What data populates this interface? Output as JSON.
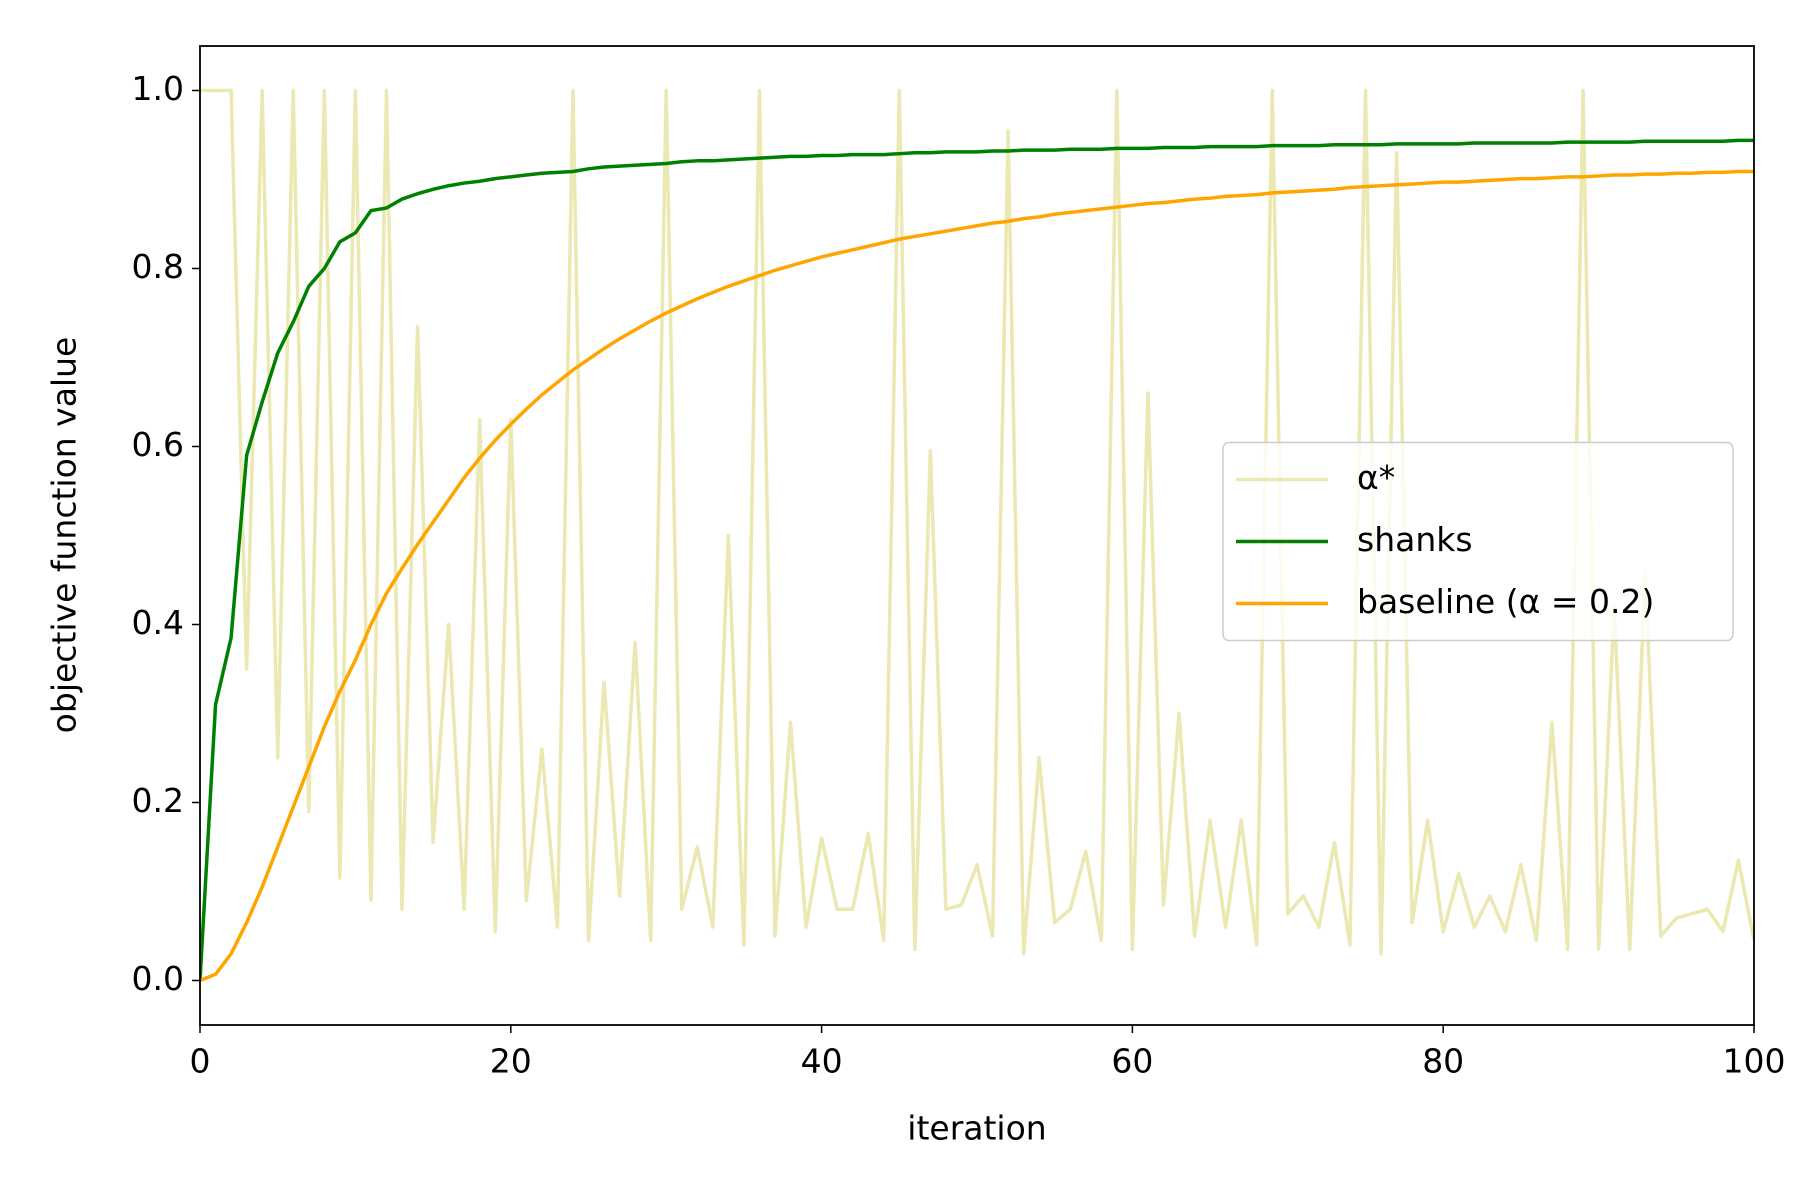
{
  "chart_data": {
    "type": "line",
    "x_label": "iteration",
    "y_label": "objective function value",
    "x": [
      0,
      1,
      2,
      3,
      4,
      5,
      6,
      7,
      8,
      9,
      10,
      11,
      12,
      13,
      14,
      15,
      16,
      17,
      18,
      19,
      20,
      21,
      22,
      23,
      24,
      25,
      26,
      27,
      28,
      29,
      30,
      31,
      32,
      33,
      34,
      35,
      36,
      37,
      38,
      39,
      40,
      41,
      42,
      43,
      44,
      45,
      46,
      47,
      48,
      49,
      50,
      51,
      52,
      53,
      54,
      55,
      56,
      57,
      58,
      59,
      60,
      61,
      62,
      63,
      64,
      65,
      66,
      67,
      68,
      69,
      70,
      71,
      72,
      73,
      74,
      75,
      76,
      77,
      78,
      79,
      80,
      81,
      82,
      83,
      84,
      85,
      86,
      87,
      88,
      89,
      90,
      91,
      92,
      93,
      94,
      95,
      96,
      97,
      98,
      99,
      100
    ],
    "series": [
      {
        "name": "α*",
        "color": "#ebe8b2",
        "values": [
          1.0,
          1.0,
          1.0,
          0.35,
          1.0,
          0.25,
          1.0,
          0.19,
          1.0,
          0.115,
          1.0,
          0.09,
          1.0,
          0.08,
          0.735,
          0.155,
          0.4,
          0.08,
          0.63,
          0.055,
          0.63,
          0.09,
          0.26,
          0.06,
          1.0,
          0.045,
          0.335,
          0.095,
          0.38,
          0.045,
          1.0,
          0.08,
          0.15,
          0.06,
          0.5,
          0.04,
          1.0,
          0.05,
          0.29,
          0.06,
          0.16,
          0.08,
          0.08,
          0.165,
          0.045,
          1.0,
          0.035,
          0.595,
          0.08,
          0.085,
          0.13,
          0.05,
          0.955,
          0.03,
          0.25,
          0.065,
          0.08,
          0.145,
          0.045,
          1.0,
          0.035,
          0.66,
          0.085,
          0.3,
          0.05,
          0.18,
          0.06,
          0.18,
          0.04,
          1.0,
          0.075,
          0.095,
          0.06,
          0.155,
          0.04,
          1.0,
          0.03,
          0.93,
          0.065,
          0.18,
          0.055,
          0.12,
          0.06,
          0.095,
          0.055,
          0.13,
          0.045,
          0.29,
          0.035,
          1.0,
          0.035,
          0.42,
          0.035,
          0.46,
          0.05,
          0.07,
          0.075,
          0.08,
          0.055,
          0.135,
          0.045
        ]
      },
      {
        "name": "shanks",
        "color": "#008000",
        "values": [
          0,
          0.31,
          0.385,
          0.59,
          0.65,
          0.705,
          0.74,
          0.78,
          0.8,
          0.83,
          0.84,
          0.865,
          0.868,
          0.878,
          0.884,
          0.889,
          0.893,
          0.896,
          0.898,
          0.901,
          0.903,
          0.905,
          0.907,
          0.908,
          0.909,
          0.912,
          0.914,
          0.915,
          0.916,
          0.917,
          0.918,
          0.92,
          0.921,
          0.921,
          0.922,
          0.923,
          0.924,
          0.925,
          0.926,
          0.926,
          0.927,
          0.927,
          0.928,
          0.928,
          0.928,
          0.929,
          0.93,
          0.93,
          0.931,
          0.931,
          0.931,
          0.932,
          0.932,
          0.933,
          0.933,
          0.933,
          0.934,
          0.934,
          0.934,
          0.935,
          0.935,
          0.935,
          0.936,
          0.936,
          0.936,
          0.937,
          0.937,
          0.937,
          0.937,
          0.938,
          0.938,
          0.938,
          0.938,
          0.939,
          0.939,
          0.939,
          0.939,
          0.94,
          0.94,
          0.94,
          0.94,
          0.94,
          0.941,
          0.941,
          0.941,
          0.941,
          0.941,
          0.941,
          0.942,
          0.942,
          0.942,
          0.942,
          0.942,
          0.943,
          0.943,
          0.943,
          0.943,
          0.943,
          0.943,
          0.944,
          0.944
        ]
      },
      {
        "name": "baseline (α = 0.2)",
        "color": "#ffa500",
        "values": [
          0,
          0.007,
          0.03,
          0.065,
          0.105,
          0.15,
          0.195,
          0.24,
          0.285,
          0.325,
          0.36,
          0.4,
          0.435,
          0.463,
          0.49,
          0.515,
          0.54,
          0.565,
          0.587,
          0.607,
          0.625,
          0.642,
          0.658,
          0.672,
          0.686,
          0.698,
          0.71,
          0.721,
          0.731,
          0.741,
          0.75,
          0.758,
          0.766,
          0.773,
          0.78,
          0.786,
          0.792,
          0.798,
          0.803,
          0.808,
          0.813,
          0.817,
          0.821,
          0.825,
          0.829,
          0.833,
          0.836,
          0.839,
          0.842,
          0.845,
          0.848,
          0.851,
          0.853,
          0.856,
          0.858,
          0.861,
          0.863,
          0.865,
          0.867,
          0.869,
          0.871,
          0.873,
          0.874,
          0.876,
          0.878,
          0.879,
          0.881,
          0.882,
          0.883,
          0.885,
          0.886,
          0.887,
          0.888,
          0.889,
          0.891,
          0.892,
          0.893,
          0.894,
          0.895,
          0.896,
          0.897,
          0.897,
          0.898,
          0.899,
          0.9,
          0.901,
          0.901,
          0.902,
          0.903,
          0.903,
          0.904,
          0.905,
          0.905,
          0.906,
          0.906,
          0.907,
          0.907,
          0.908,
          0.908,
          0.909,
          0.909
        ]
      }
    ],
    "xlim": [
      0,
      100
    ],
    "xticks": [
      0,
      20,
      40,
      60,
      80,
      100
    ],
    "ylim": [
      -0.05,
      1.05
    ],
    "yticks": [
      {
        "value": 0,
        "label": "0.0"
      },
      0.2,
      0.4,
      0.6,
      0.8,
      {
        "value": 1,
        "label": "1.0"
      }
    ],
    "grid": false,
    "legend": "center right"
  }
}
